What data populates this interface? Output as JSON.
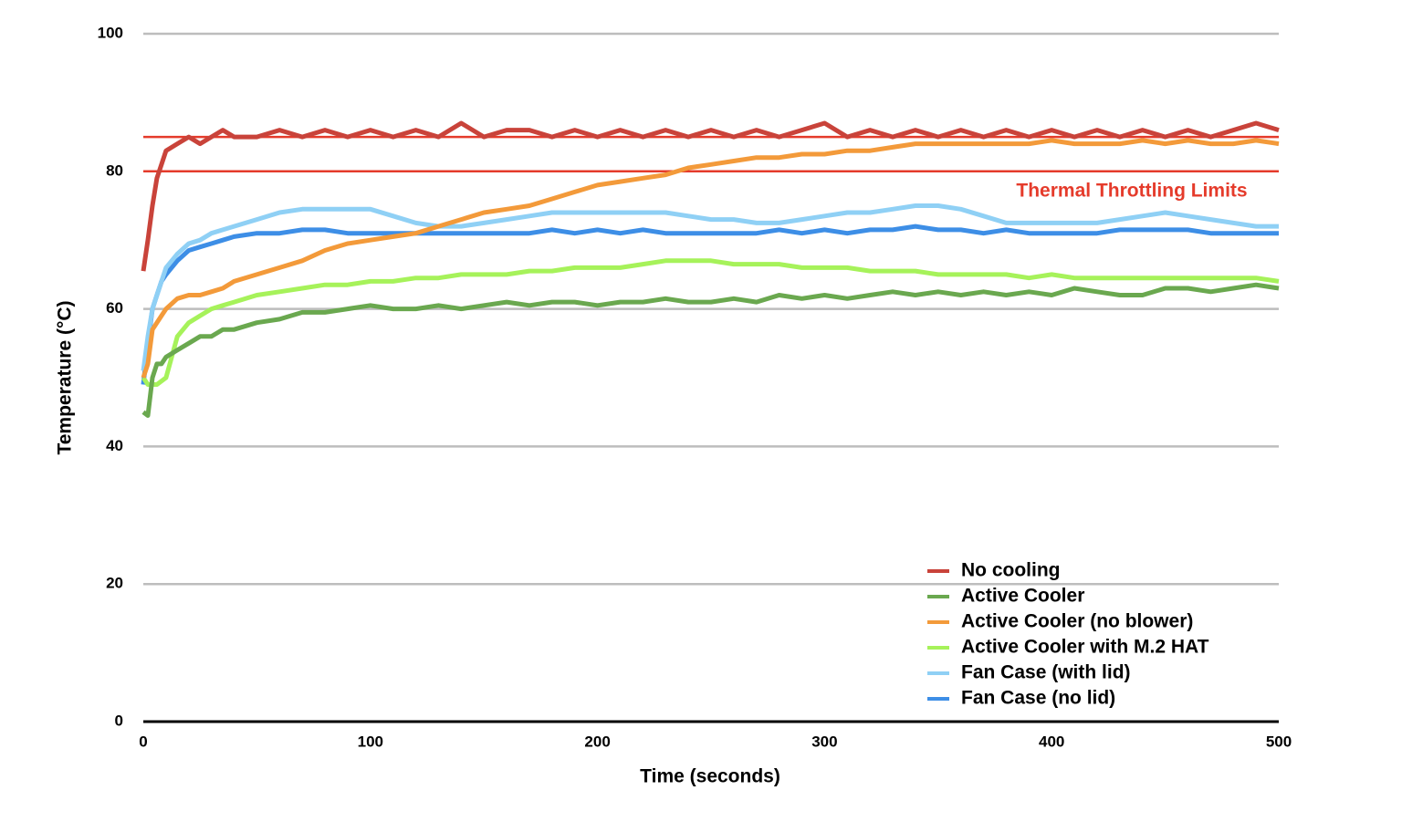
{
  "chart_data": {
    "type": "line",
    "x_label": "Time (seconds)",
    "y_label": "Temperature (°C)",
    "x": [
      0,
      2,
      4,
      6,
      8,
      10,
      15,
      20,
      25,
      30,
      35,
      40,
      50,
      60,
      70,
      80,
      90,
      100,
      110,
      120,
      130,
      140,
      150,
      160,
      170,
      180,
      190,
      200,
      210,
      220,
      230,
      240,
      250,
      260,
      270,
      280,
      290,
      300,
      310,
      320,
      330,
      340,
      350,
      360,
      370,
      380,
      390,
      400,
      410,
      420,
      430,
      440,
      450,
      460,
      470,
      480,
      490,
      500
    ],
    "series": [
      {
        "name": "No cooling",
        "color": "#c9433a",
        "values": [
          65.5,
          70,
          75,
          79,
          81,
          83,
          84,
          85,
          84,
          85,
          86,
          85,
          85,
          86,
          85,
          86,
          85,
          86,
          85,
          86,
          85,
          87,
          85,
          86,
          86,
          85,
          86,
          85,
          86,
          85,
          86,
          85,
          86,
          85,
          86,
          85,
          86,
          87,
          85,
          86,
          85,
          86,
          85,
          86,
          85,
          86,
          85,
          86,
          85,
          86,
          85,
          86,
          85,
          86,
          85,
          86,
          87,
          86
        ]
      },
      {
        "name": "Active Cooler",
        "color": "#6aa84f",
        "values": [
          45,
          44.5,
          50,
          52,
          52,
          53,
          54,
          55,
          56,
          56,
          57,
          57,
          58,
          58.5,
          59.5,
          59.5,
          60,
          60.5,
          60,
          60,
          60.5,
          60,
          60.5,
          61,
          60.5,
          61,
          61,
          60.5,
          61,
          61,
          61.5,
          61,
          61,
          61.5,
          61,
          62,
          61.5,
          62,
          61.5,
          62,
          62.5,
          62,
          62.5,
          62,
          62.5,
          62,
          62.5,
          62,
          63,
          62.5,
          62,
          62,
          63,
          63,
          62.5,
          63,
          63.5,
          63
        ]
      },
      {
        "name": "Active Cooler (no blower)",
        "color": "#f39a3a",
        "values": [
          50,
          52,
          57,
          58,
          59,
          60,
          61.5,
          62,
          62,
          62.5,
          63,
          64,
          65,
          66,
          67,
          68.5,
          69.5,
          70,
          70.5,
          71,
          72,
          73,
          74,
          74.5,
          75,
          76,
          77,
          78,
          78.5,
          79,
          79.5,
          80.5,
          81,
          81.5,
          82,
          82,
          82.5,
          82.5,
          83,
          83,
          83.5,
          84,
          84,
          84,
          84,
          84,
          84,
          84.5,
          84,
          84,
          84,
          84.5,
          84,
          84.5,
          84,
          84,
          84.5,
          84
        ]
      },
      {
        "name": "Active Cooler with M.2 HAT",
        "color": "#a6f25a",
        "values": [
          50,
          49,
          49,
          49,
          49.5,
          50,
          56,
          58,
          59,
          60,
          60.5,
          61,
          62,
          62.5,
          63,
          63.5,
          63.5,
          64,
          64,
          64.5,
          64.5,
          65,
          65,
          65,
          65.5,
          65.5,
          66,
          66,
          66,
          66.5,
          67,
          67,
          67,
          66.5,
          66.5,
          66.5,
          66,
          66,
          66,
          65.5,
          65.5,
          65.5,
          65,
          65,
          65,
          65,
          64.5,
          65,
          64.5,
          64.5,
          64.5,
          64.5,
          64.5,
          64.5,
          64.5,
          64.5,
          64.5,
          64
        ]
      },
      {
        "name": "Fan Case (with lid)",
        "color": "#8fd0f5",
        "values": [
          51,
          56,
          60,
          62,
          64,
          66,
          68,
          69.5,
          70,
          71,
          71.5,
          72,
          73,
          74,
          74.5,
          74.5,
          74.5,
          74.5,
          73.5,
          72.5,
          72,
          72,
          72.5,
          73,
          73.5,
          74,
          74,
          74,
          74,
          74,
          74,
          73.5,
          73,
          73,
          72.5,
          72.5,
          73,
          73.5,
          74,
          74,
          74.5,
          75,
          75,
          74.5,
          73.5,
          72.5,
          72.5,
          72.5,
          72.5,
          72.5,
          73,
          73.5,
          74,
          73.5,
          73,
          72.5,
          72,
          72
        ]
      },
      {
        "name": "Fan Case (no lid)",
        "color": "#3d8ee6",
        "values": [
          49,
          55,
          60,
          62,
          64,
          65,
          67,
          68.5,
          69,
          69.5,
          70,
          70.5,
          71,
          71,
          71.5,
          71.5,
          71,
          71,
          71,
          71,
          71,
          71,
          71,
          71,
          71,
          71.5,
          71,
          71.5,
          71,
          71.5,
          71,
          71,
          71,
          71,
          71,
          71.5,
          71,
          71.5,
          71,
          71.5,
          71.5,
          72,
          71.5,
          71.5,
          71,
          71.5,
          71,
          71,
          71,
          71,
          71.5,
          71.5,
          71.5,
          71.5,
          71,
          71,
          71,
          71
        ]
      }
    ],
    "reference_lines": [
      {
        "value": 85,
        "color": "#e53b2b"
      },
      {
        "value": 80,
        "color": "#e53b2b"
      }
    ],
    "annotation": "Thermal Throttling Limits",
    "xlim": [
      0,
      500
    ],
    "xticks": [
      0,
      100,
      200,
      300,
      400,
      500
    ],
    "ylim": [
      0,
      100
    ],
    "yticks": [
      0,
      20,
      40,
      60,
      80,
      100
    ],
    "grid": true,
    "legend": "bottom-right"
  }
}
